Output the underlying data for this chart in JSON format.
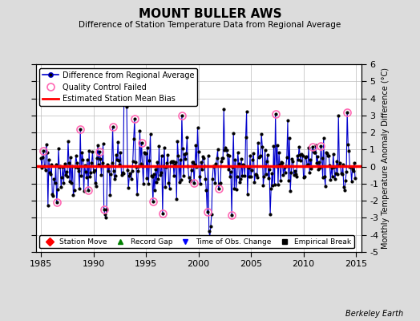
{
  "title": "MOUNT BULLER AWS",
  "subtitle": "Difference of Station Temperature Data from Regional Average",
  "ylabel_right": "Monthly Temperature Anomaly Difference (°C)",
  "bias_value": 0.05,
  "xlim": [
    1984.5,
    2015.5
  ],
  "ylim": [
    -5,
    6
  ],
  "yticks": [
    -5,
    -4,
    -3,
    -2,
    -1,
    0,
    1,
    2,
    3,
    4,
    5,
    6
  ],
  "xticks": [
    1985,
    1990,
    1995,
    2000,
    2005,
    2010,
    2015
  ],
  "background_color": "#dcdcdc",
  "plot_bg_color": "#ffffff",
  "line_color": "#0000cc",
  "dot_color": "#000000",
  "bias_color": "#ff0000",
  "qc_fail_color": "#ff69b4",
  "watermark": "Berkeley Earth",
  "seed": 42,
  "n_points": 360,
  "time_start": 1985.0,
  "time_end": 2014.917
}
